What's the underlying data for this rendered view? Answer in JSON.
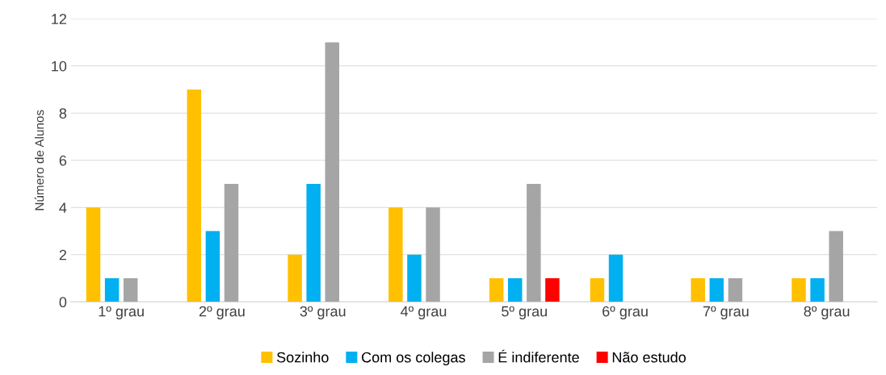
{
  "chart_data": {
    "type": "bar",
    "ylabel": "Número de Alunos",
    "categories": [
      "1º grau",
      "2º grau",
      "3º grau",
      "4º grau",
      "5º grau",
      "6º grau",
      "7º grau",
      "8º grau"
    ],
    "series": [
      {
        "name": "Sozinho",
        "color": "#ffc000",
        "values": [
          4,
          9,
          2,
          4,
          1,
          1,
          1,
          1
        ]
      },
      {
        "name": "Com os colegas",
        "color": "#00b0f0",
        "values": [
          1,
          3,
          5,
          2,
          1,
          2,
          1,
          1
        ]
      },
      {
        "name": "É indiferente",
        "color": "#a5a5a5",
        "values": [
          1,
          5,
          11,
          4,
          5,
          null,
          1,
          3
        ]
      },
      {
        "name": "Não estudo",
        "color": "#ff0000",
        "values": [
          null,
          null,
          null,
          null,
          1,
          null,
          null,
          null
        ]
      }
    ],
    "ylim": [
      0,
      12
    ],
    "yticks": [
      0,
      2,
      4,
      6,
      8,
      10,
      12
    ],
    "grid": "y",
    "legend": "bottom"
  }
}
